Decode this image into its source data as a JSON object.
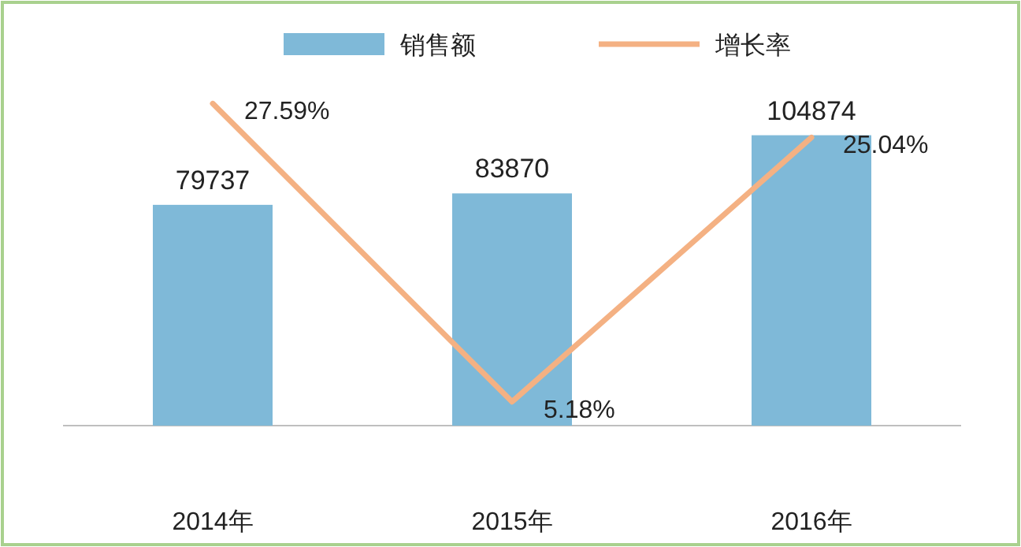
{
  "chart_data": {
    "type": "bar",
    "categories": [
      "2014年",
      "2015年",
      "2016年"
    ],
    "series": [
      {
        "name": "销售额",
        "color": "#7fb9d8",
        "values": [
          79737,
          83870,
          104874
        ]
      },
      {
        "name": "增长率",
        "type": "line",
        "axis": "y2",
        "color": "#f4b183",
        "values": [
          27.59,
          5.18,
          25.04
        ],
        "value_labels": [
          "27.59%",
          "5.18%",
          "25.04%"
        ]
      }
    ],
    "data_labels": true,
    "legend": "top",
    "tick_labels": "x"
  }
}
